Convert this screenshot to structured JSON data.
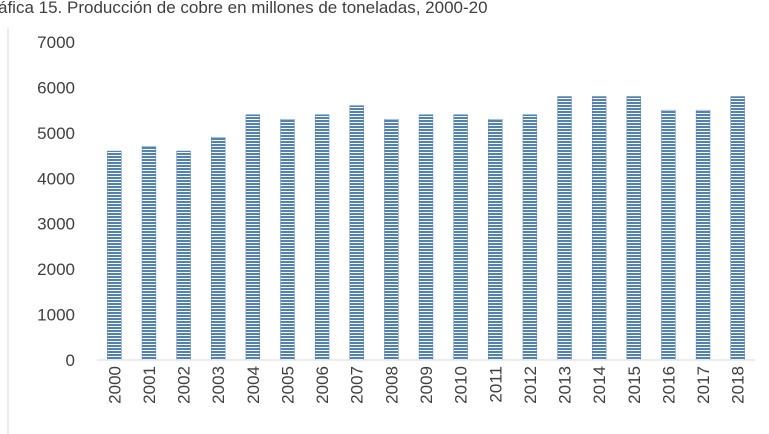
{
  "chart_data": {
    "type": "bar",
    "title": "áfica 15. Producción de cobre en millones de toneladas, 2000-20",
    "categories": [
      "2000",
      "2001",
      "2002",
      "2003",
      "2004",
      "2005",
      "2006",
      "2007",
      "2008",
      "2009",
      "2010",
      "2011",
      "2012",
      "2013",
      "2014",
      "2015",
      "2016",
      "2017",
      "2018"
    ],
    "values": [
      4600,
      4700,
      4600,
      4900,
      5400,
      5300,
      5400,
      5600,
      5300,
      5400,
      5400,
      5300,
      5400,
      5800,
      5800,
      5800,
      5500,
      5500,
      5800
    ],
    "color": "#4f81bd",
    "ylim": [
      0,
      7000
    ],
    "yticks": [
      0,
      1000,
      2000,
      3000,
      4000,
      5000,
      6000,
      7000
    ],
    "grid": false
  }
}
